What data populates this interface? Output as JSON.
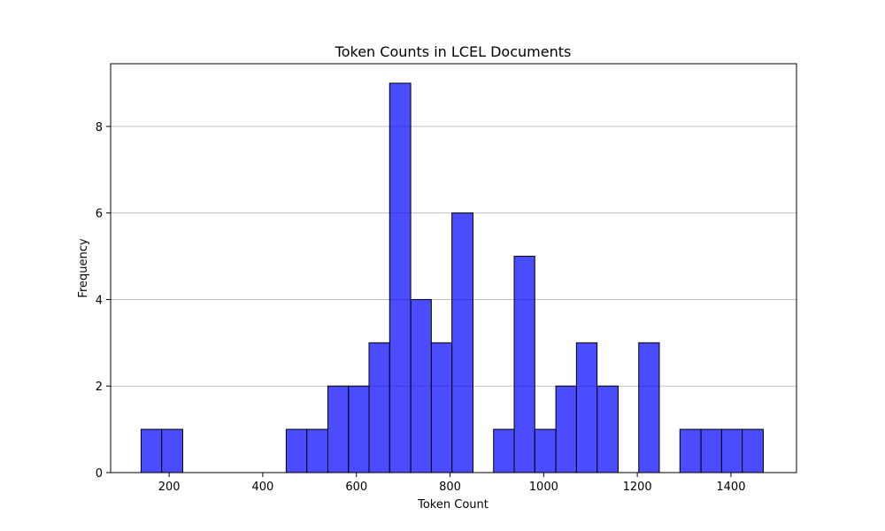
{
  "chart_data": {
    "type": "bar",
    "title": "Token Counts in LCEL Documents",
    "xlabel": "Token Count",
    "ylabel": "Frequency",
    "xlim": [
      75,
      1540
    ],
    "ylim": [
      0,
      9.45
    ],
    "xticks": [
      200,
      400,
      600,
      800,
      1000,
      1200,
      1400
    ],
    "yticks": [
      0,
      2,
      4,
      6,
      8
    ],
    "grid": "y-axis only",
    "bar_color": "#0000ff",
    "bar_edge_color": "#000000",
    "bins": [
      {
        "start": 140,
        "end": 184,
        "count": 1
      },
      {
        "start": 184,
        "end": 229,
        "count": 1
      },
      {
        "start": 229,
        "end": 273,
        "count": 0
      },
      {
        "start": 273,
        "end": 317,
        "count": 0
      },
      {
        "start": 317,
        "end": 361,
        "count": 0
      },
      {
        "start": 361,
        "end": 406,
        "count": 0
      },
      {
        "start": 406,
        "end": 450,
        "count": 0
      },
      {
        "start": 450,
        "end": 494,
        "count": 1
      },
      {
        "start": 494,
        "end": 539,
        "count": 1
      },
      {
        "start": 539,
        "end": 583,
        "count": 2
      },
      {
        "start": 583,
        "end": 627,
        "count": 2
      },
      {
        "start": 627,
        "end": 671,
        "count": 3
      },
      {
        "start": 671,
        "end": 716,
        "count": 9
      },
      {
        "start": 716,
        "end": 760,
        "count": 4
      },
      {
        "start": 760,
        "end": 804,
        "count": 3
      },
      {
        "start": 804,
        "end": 849,
        "count": 6
      },
      {
        "start": 849,
        "end": 893,
        "count": 0
      },
      {
        "start": 893,
        "end": 937,
        "count": 1
      },
      {
        "start": 937,
        "end": 981,
        "count": 5
      },
      {
        "start": 981,
        "end": 1026,
        "count": 1
      },
      {
        "start": 1026,
        "end": 1070,
        "count": 2
      },
      {
        "start": 1070,
        "end": 1114,
        "count": 3
      },
      {
        "start": 1114,
        "end": 1159,
        "count": 2
      },
      {
        "start": 1159,
        "end": 1203,
        "count": 0
      },
      {
        "start": 1203,
        "end": 1247,
        "count": 3
      },
      {
        "start": 1247,
        "end": 1291,
        "count": 0
      },
      {
        "start": 1291,
        "end": 1336,
        "count": 1
      },
      {
        "start": 1336,
        "end": 1380,
        "count": 1
      },
      {
        "start": 1380,
        "end": 1424,
        "count": 1
      },
      {
        "start": 1424,
        "end": 1469,
        "count": 1
      }
    ]
  }
}
